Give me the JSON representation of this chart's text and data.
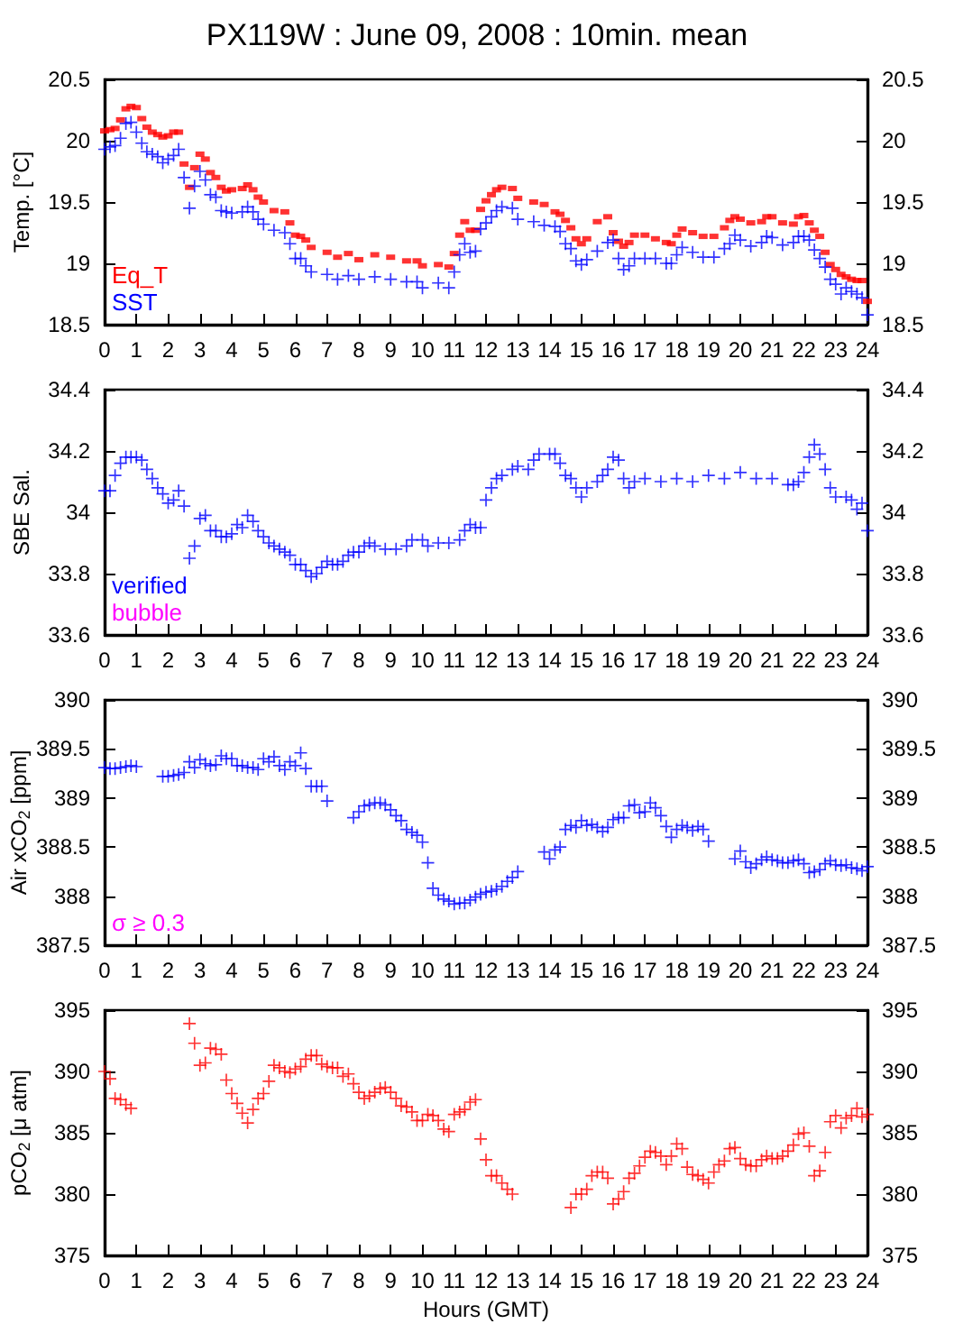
{
  "chart_data": [
    {
      "type": "scatter",
      "title": "PX119W : June 09, 2008 : 10min. mean",
      "ylabel": "Temp. [°C]",
      "xlim": [
        0,
        24
      ],
      "xticks": [
        0,
        1,
        2,
        3,
        4,
        5,
        6,
        7,
        8,
        9,
        10,
        11,
        12,
        13,
        14,
        15,
        16,
        17,
        18,
        19,
        20,
        21,
        22,
        23,
        24
      ],
      "ylim": [
        18.5,
        20.5
      ],
      "yticks": [
        18.5,
        19,
        19.5,
        20,
        20.5
      ],
      "y2lim": [
        18.5,
        20.5
      ],
      "y2ticks": [
        18.5,
        19,
        19.5,
        20,
        20.5
      ],
      "legend": "bottom left",
      "marker": "cross",
      "series": [
        {
          "name": "Eq_T",
          "color": "#ff0000",
          "marker": "square",
          "x": [
            0,
            0.17,
            0.33,
            0.5,
            0.67,
            0.83,
            1,
            1.17,
            1.33,
            1.5,
            1.67,
            1.83,
            2,
            2.17,
            2.33,
            2.5,
            2.67,
            2.83,
            3,
            3.17,
            3.33,
            3.5,
            3.67,
            3.83,
            4,
            4.33,
            4.5,
            4.67,
            4.83,
            5,
            5.33,
            5.67,
            5.83,
            6,
            6.17,
            6.33,
            6.5,
            7,
            7.33,
            7.67,
            8,
            8.5,
            9,
            9.5,
            9.83,
            10,
            10.5,
            10.83,
            11,
            11.17,
            11.33,
            11.5,
            11.67,
            11.83,
            12,
            12.17,
            12.33,
            12.5,
            12.83,
            13,
            13.5,
            13.83,
            14.17,
            14.33,
            14.5,
            14.67,
            14.83,
            15,
            15.17,
            15.5,
            15.83,
            16,
            16.17,
            16.33,
            16.5,
            16.67,
            17,
            17.33,
            17.67,
            17.83,
            18,
            18.17,
            18.5,
            18.83,
            19.17,
            19.5,
            19.67,
            19.83,
            20,
            20.33,
            20.67,
            20.83,
            21,
            21.33,
            21.67,
            21.83,
            22,
            22.17,
            22.33,
            22.5,
            22.67,
            22.83,
            23,
            23.17,
            23.33,
            23.5,
            23.67,
            23.83,
            24
          ],
          "values": [
            20.08,
            20.09,
            20.1,
            20.17,
            20.26,
            20.28,
            20.27,
            20.18,
            20.11,
            20.07,
            20.05,
            20.03,
            20.04,
            20.07,
            20.07,
            19.81,
            19.62,
            19.78,
            19.89,
            19.85,
            19.74,
            19.7,
            19.62,
            19.59,
            19.6,
            19.61,
            19.64,
            19.6,
            19.54,
            19.5,
            19.43,
            19.42,
            19.33,
            19.23,
            19.22,
            19.19,
            19.13,
            19.09,
            19.05,
            19.08,
            19.03,
            19.07,
            19.05,
            19.02,
            19.02,
            18.98,
            18.99,
            18.97,
            19.08,
            19.23,
            19.34,
            19.27,
            19.27,
            19.44,
            19.51,
            19.56,
            19.6,
            19.62,
            19.61,
            19.53,
            19.5,
            19.48,
            19.42,
            19.4,
            19.35,
            19.29,
            19.2,
            19.16,
            19.2,
            19.34,
            19.38,
            19.25,
            19.18,
            19.14,
            19.17,
            19.23,
            19.23,
            19.2,
            19.17,
            19.16,
            19.23,
            19.28,
            19.25,
            19.22,
            19.22,
            19.29,
            19.35,
            19.38,
            19.36,
            19.33,
            19.34,
            19.38,
            19.38,
            19.33,
            19.32,
            19.38,
            19.39,
            19.33,
            19.27,
            19.22,
            19.09,
            18.99,
            18.95,
            18.91,
            18.89,
            18.87,
            18.86,
            18.86,
            18.69
          ]
        },
        {
          "name": "SST",
          "color": "#0000ff",
          "x": [
            0,
            0.17,
            0.33,
            0.5,
            0.67,
            0.83,
            1,
            1.17,
            1.33,
            1.5,
            1.67,
            1.83,
            2,
            2.17,
            2.33,
            2.5,
            2.67,
            2.83,
            3,
            3.17,
            3.33,
            3.5,
            3.67,
            3.83,
            4,
            4.33,
            4.5,
            4.67,
            4.83,
            5,
            5.33,
            5.67,
            5.83,
            6,
            6.17,
            6.33,
            6.5,
            7,
            7.33,
            7.67,
            8,
            8.5,
            9,
            9.5,
            9.83,
            10,
            10.5,
            10.83,
            11,
            11.17,
            11.33,
            11.5,
            11.67,
            11.83,
            12,
            12.17,
            12.33,
            12.5,
            12.83,
            13,
            13.5,
            13.83,
            14.17,
            14.33,
            14.5,
            14.67,
            14.83,
            15,
            15.17,
            15.5,
            15.83,
            16,
            16.17,
            16.33,
            16.5,
            16.67,
            17,
            17.33,
            17.67,
            17.83,
            18,
            18.17,
            18.5,
            18.83,
            19.17,
            19.5,
            19.67,
            19.83,
            20,
            20.33,
            20.67,
            20.83,
            21,
            21.33,
            21.67,
            21.83,
            22,
            22.17,
            22.33,
            22.5,
            22.67,
            22.83,
            23,
            23.17,
            23.33,
            23.5,
            23.67,
            23.83,
            24
          ],
          "values": [
            19.93,
            19.95,
            19.96,
            20.02,
            20.14,
            20.15,
            20.07,
            19.98,
            19.91,
            19.89,
            19.87,
            19.82,
            19.85,
            19.88,
            19.93,
            19.7,
            19.45,
            19.63,
            19.75,
            19.68,
            19.56,
            19.54,
            19.43,
            19.42,
            19.41,
            19.42,
            19.46,
            19.42,
            19.36,
            19.32,
            19.27,
            19.25,
            19.16,
            19.04,
            19.04,
            18.98,
            18.93,
            18.91,
            18.87,
            18.9,
            18.87,
            18.89,
            18.87,
            18.85,
            18.85,
            18.8,
            18.84,
            18.8,
            18.93,
            19.07,
            19.16,
            19.09,
            19.1,
            19.28,
            19.33,
            19.38,
            19.43,
            19.46,
            19.45,
            19.36,
            19.34,
            19.31,
            19.3,
            19.26,
            19.16,
            19.12,
            19.02,
            18.99,
            19.03,
            19.1,
            19.17,
            19.19,
            19.04,
            18.95,
            18.98,
            19.04,
            19.04,
            19.04,
            19,
            19,
            19.07,
            19.13,
            19.09,
            19.05,
            19.05,
            19.12,
            19.16,
            19.23,
            19.19,
            19.14,
            19.17,
            19.22,
            19.21,
            19.15,
            19.17,
            19.22,
            19.22,
            19.19,
            19.11,
            19.04,
            18.97,
            18.87,
            18.83,
            18.75,
            18.8,
            18.77,
            18.75,
            18.72,
            18.58
          ]
        }
      ]
    },
    {
      "type": "scatter",
      "ylabel": "SBE Sal.",
      "xlim": [
        0,
        24
      ],
      "xticks": [
        0,
        1,
        2,
        3,
        4,
        5,
        6,
        7,
        8,
        9,
        10,
        11,
        12,
        13,
        14,
        15,
        16,
        17,
        18,
        19,
        20,
        21,
        22,
        23,
        24
      ],
      "ylim": [
        33.6,
        34.4
      ],
      "yticks": [
        33.6,
        33.8,
        34,
        34.2,
        34.4
      ],
      "y2lim": [
        33.6,
        34.4
      ],
      "y2ticks": [
        33.6,
        33.8,
        34,
        34.2,
        34.4
      ],
      "legend": "bottom left",
      "marker": "cross",
      "series": [
        {
          "name": "verified",
          "color": "#0000ff",
          "x": [
            0,
            0.17,
            0.33,
            0.5,
            0.67,
            0.83,
            1,
            1.17,
            1.33,
            1.5,
            1.67,
            1.83,
            2,
            2.17,
            2.33,
            2.5,
            2.67,
            2.83,
            3,
            3.17,
            3.33,
            3.5,
            3.67,
            3.83,
            4,
            4.17,
            4.33,
            4.5,
            4.67,
            4.83,
            5,
            5.17,
            5.33,
            5.5,
            5.67,
            5.83,
            6,
            6.17,
            6.33,
            6.5,
            6.67,
            6.83,
            7,
            7.17,
            7.33,
            7.5,
            7.67,
            7.83,
            8,
            8.17,
            8.33,
            8.5,
            8.83,
            9.17,
            9.5,
            9.67,
            10,
            10.17,
            10.5,
            10.83,
            11.17,
            11.33,
            11.5,
            11.67,
            11.83,
            12,
            12.17,
            12.33,
            12.5,
            12.83,
            13,
            13.33,
            13.5,
            13.67,
            14,
            14.17,
            14.33,
            14.5,
            14.67,
            14.83,
            15,
            15.17,
            15.5,
            15.67,
            15.83,
            16,
            16.17,
            16.33,
            16.5,
            16.67,
            17,
            17.5,
            18,
            18.5,
            19,
            19.5,
            20,
            20.5,
            21,
            21.5,
            21.67,
            21.83,
            22,
            22.17,
            22.33,
            22.5,
            22.67,
            22.83,
            23,
            23.33,
            23.5,
            23.67,
            23.83,
            24
          ],
          "values": [
            34.07,
            34.07,
            34.12,
            34.16,
            34.18,
            34.18,
            34.18,
            34.17,
            34.14,
            34.11,
            34.08,
            34.06,
            34.03,
            34.04,
            34.07,
            34.02,
            33.85,
            33.89,
            33.98,
            33.99,
            33.94,
            33.94,
            33.92,
            33.92,
            33.93,
            33.96,
            33.95,
            33.99,
            33.97,
            33.94,
            33.92,
            33.9,
            33.89,
            33.88,
            33.87,
            33.86,
            33.83,
            33.83,
            33.81,
            33.79,
            33.8,
            33.82,
            33.84,
            33.83,
            33.83,
            33.84,
            33.86,
            33.87,
            33.87,
            33.89,
            33.9,
            33.89,
            33.88,
            33.88,
            33.89,
            33.91,
            33.91,
            33.89,
            33.9,
            33.9,
            33.91,
            33.94,
            33.96,
            33.95,
            33.95,
            34.04,
            34.08,
            34.11,
            34.12,
            34.14,
            34.15,
            34.14,
            34.17,
            34.19,
            34.19,
            34.19,
            34.16,
            34.12,
            34.11,
            34.08,
            34.05,
            34.08,
            34.1,
            34.12,
            34.14,
            34.18,
            34.17,
            34.11,
            34.08,
            34.1,
            34.11,
            34.1,
            34.11,
            34.1,
            34.12,
            34.11,
            34.13,
            34.11,
            34.11,
            34.09,
            34.09,
            34.1,
            34.13,
            34.18,
            34.22,
            34.19,
            34.14,
            34.08,
            34.05,
            34.05,
            34.04,
            34.01,
            34.03,
            33.94
          ]
        },
        {
          "name": "bubble",
          "color": "#ff00ff"
        }
      ]
    },
    {
      "type": "scatter",
      "ylabel": "Air xCO$_{2}$ [ppm]",
      "xlim": [
        0,
        24
      ],
      "xticks": [
        0,
        1,
        2,
        3,
        4,
        5,
        6,
        7,
        8,
        9,
        10,
        11,
        12,
        13,
        14,
        15,
        16,
        17,
        18,
        19,
        20,
        21,
        22,
        23,
        24
      ],
      "ylim": [
        387.5,
        390
      ],
      "yticks": [
        387.5,
        388,
        388.5,
        389,
        389.5,
        390
      ],
      "y2lim": [
        387.5,
        390
      ],
      "y2ticks": [
        387.5,
        388,
        388.5,
        389,
        389.5,
        390
      ],
      "annotations": [
        "σ ≥ 0.3"
      ],
      "marker": "cross",
      "series": [
        {
          "color": "#0000ff",
          "x": [
            0,
            0.17,
            0.33,
            0.5,
            0.67,
            0.83,
            1,
            1.83,
            2,
            2.17,
            2.33,
            2.5,
            2.67,
            2.83,
            3,
            3.17,
            3.33,
            3.5,
            3.67,
            3.83,
            4,
            4.17,
            4.33,
            4.5,
            4.67,
            4.83,
            5,
            5.17,
            5.33,
            5.5,
            5.67,
            5.83,
            6,
            6.17,
            6.33,
            6.5,
            6.67,
            6.83,
            7,
            7.83,
            8,
            8.17,
            8.33,
            8.5,
            8.67,
            8.83,
            9,
            9.17,
            9.33,
            9.5,
            9.67,
            9.83,
            10,
            10.17,
            10.33,
            10.5,
            10.67,
            10.83,
            11,
            11.17,
            11.33,
            11.5,
            11.67,
            11.83,
            12,
            12.17,
            12.33,
            12.5,
            12.67,
            12.83,
            13,
            13.83,
            14,
            14.17,
            14.33,
            14.5,
            14.67,
            14.83,
            15,
            15.17,
            15.33,
            15.5,
            15.67,
            15.83,
            16,
            16.17,
            16.33,
            16.5,
            16.67,
            16.83,
            17,
            17.17,
            17.33,
            17.5,
            17.67,
            17.83,
            18,
            18.17,
            18.33,
            18.5,
            18.67,
            18.83,
            19,
            19.83,
            20,
            20.17,
            20.33,
            20.5,
            20.67,
            20.83,
            21,
            21.17,
            21.33,
            21.5,
            21.67,
            21.83,
            22,
            22.17,
            22.33,
            22.5,
            22.67,
            22.83,
            23,
            23.17,
            23.33,
            23.5,
            23.67,
            23.83,
            24
          ],
          "values": [
            389.31,
            389.3,
            389.3,
            389.31,
            389.32,
            389.33,
            389.32,
            389.22,
            389.22,
            389.23,
            389.24,
            389.26,
            389.37,
            389.31,
            389.39,
            389.35,
            389.33,
            389.34,
            389.43,
            389.4,
            389.4,
            389.33,
            389.33,
            389.31,
            389.31,
            389.29,
            389.4,
            389.37,
            389.42,
            389.33,
            389.29,
            389.37,
            389.33,
            389.46,
            389.3,
            389.12,
            389.12,
            389.12,
            388.97,
            388.8,
            388.86,
            388.92,
            388.93,
            388.95,
            388.95,
            388.93,
            388.88,
            388.82,
            388.77,
            388.68,
            388.65,
            388.62,
            388.55,
            388.34,
            388.08,
            388.01,
            387.97,
            387.95,
            387.92,
            387.93,
            387.93,
            387.96,
            387.99,
            388.02,
            388.04,
            388.05,
            388.07,
            388.1,
            388.15,
            388.19,
            388.25,
            388.45,
            388.38,
            388.47,
            388.5,
            388.68,
            388.72,
            388.7,
            388.77,
            388.72,
            388.73,
            388.7,
            388.66,
            388.7,
            388.78,
            388.8,
            388.8,
            388.92,
            388.93,
            388.85,
            388.86,
            388.95,
            388.9,
            388.82,
            388.71,
            388.6,
            388.68,
            388.72,
            388.7,
            388.67,
            388.71,
            388.68,
            388.56,
            388.38,
            388.46,
            388.35,
            388.29,
            388.33,
            388.37,
            388.4,
            388.37,
            388.36,
            388.34,
            388.34,
            388.36,
            388.37,
            388.33,
            388.24,
            388.25,
            388.27,
            388.33,
            388.36,
            388.32,
            388.31,
            388.32,
            388.29,
            388.28,
            388.26,
            388.3
          ]
        }
      ]
    },
    {
      "type": "scatter",
      "xlabel": "Hours (GMT)",
      "ylabel": "pCO$_{2}$ [μ atm]",
      "xlim": [
        0,
        24
      ],
      "xticks": [
        0,
        1,
        2,
        3,
        4,
        5,
        6,
        7,
        8,
        9,
        10,
        11,
        12,
        13,
        14,
        15,
        16,
        17,
        18,
        19,
        20,
        21,
        22,
        23,
        24
      ],
      "ylim": [
        375,
        395
      ],
      "yticks": [
        375,
        380,
        385,
        390,
        395
      ],
      "y2lim": [
        375,
        395
      ],
      "y2ticks": [
        375,
        380,
        385,
        390,
        395
      ],
      "marker": "cross",
      "series": [
        {
          "color": "#ff0000",
          "x": [
            0,
            0.17,
            0.33,
            0.5,
            0.67,
            0.83,
            2.67,
            2.83,
            3,
            3.17,
            3.33,
            3.5,
            3.67,
            3.83,
            4,
            4.17,
            4.33,
            4.5,
            4.67,
            4.83,
            5,
            5.17,
            5.33,
            5.5,
            5.67,
            5.83,
            6,
            6.17,
            6.33,
            6.5,
            6.67,
            6.83,
            7,
            7.17,
            7.33,
            7.5,
            7.67,
            7.83,
            8,
            8.17,
            8.33,
            8.5,
            8.67,
            8.83,
            9,
            9.17,
            9.33,
            9.5,
            9.67,
            9.83,
            10,
            10.17,
            10.33,
            10.5,
            10.67,
            10.83,
            11,
            11.17,
            11.33,
            11.5,
            11.67,
            11.83,
            12,
            12.17,
            12.33,
            12.5,
            12.67,
            12.83,
            14.67,
            14.83,
            15,
            15.17,
            15.33,
            15.5,
            15.67,
            15.83,
            16,
            16.17,
            16.33,
            16.5,
            16.67,
            16.83,
            17,
            17.17,
            17.33,
            17.5,
            17.67,
            17.83,
            18,
            18.17,
            18.33,
            18.5,
            18.67,
            18.83,
            19,
            19.17,
            19.33,
            19.5,
            19.67,
            19.83,
            20,
            20.17,
            20.33,
            20.5,
            20.67,
            20.83,
            21,
            21.17,
            21.33,
            21.5,
            21.67,
            21.83,
            22,
            22.17,
            22.33,
            22.5,
            22.67,
            22.83,
            23,
            23.17,
            23.33,
            23.5,
            23.67,
            23.83,
            24
          ],
          "values": [
            390,
            389.4,
            387.8,
            387.7,
            387.3,
            387,
            393.9,
            392.3,
            390.5,
            390.7,
            391.9,
            391.8,
            391.4,
            389.3,
            388.2,
            387.4,
            386.6,
            385.8,
            386.9,
            387.8,
            388.2,
            389.2,
            390.5,
            390.3,
            390,
            389.9,
            390.2,
            390.4,
            391,
            391.3,
            391.3,
            390.6,
            390.4,
            390.3,
            390.3,
            389.6,
            389.8,
            389,
            388.3,
            387.8,
            388,
            388.3,
            388.6,
            388.7,
            388.3,
            387.8,
            387.2,
            387.1,
            386.7,
            386,
            386,
            386.5,
            386.4,
            386,
            385.3,
            385.1,
            386.5,
            386.7,
            386.9,
            387.5,
            387.7,
            384.5,
            382.8,
            381.5,
            381.5,
            380.9,
            380.4,
            380,
            378.9,
            380,
            380,
            380.4,
            381.5,
            381.8,
            381.8,
            381.3,
            379.2,
            379.6,
            380.2,
            381.3,
            381.7,
            382.3,
            383,
            383.5,
            383.4,
            383.1,
            382.4,
            383.1,
            384.1,
            383.7,
            382.2,
            381.6,
            381.5,
            381.2,
            380.9,
            381.8,
            382.4,
            382.7,
            383.7,
            383.8,
            382.9,
            382.4,
            382.3,
            382.3,
            382.8,
            383.1,
            382.9,
            382.9,
            383.1,
            383.5,
            384,
            384.9,
            385,
            383.9,
            381.5,
            381.9,
            383.4,
            385.9,
            386.4,
            385.4,
            386.2,
            386.4,
            387,
            386.3,
            386.5
          ]
        }
      ]
    }
  ]
}
